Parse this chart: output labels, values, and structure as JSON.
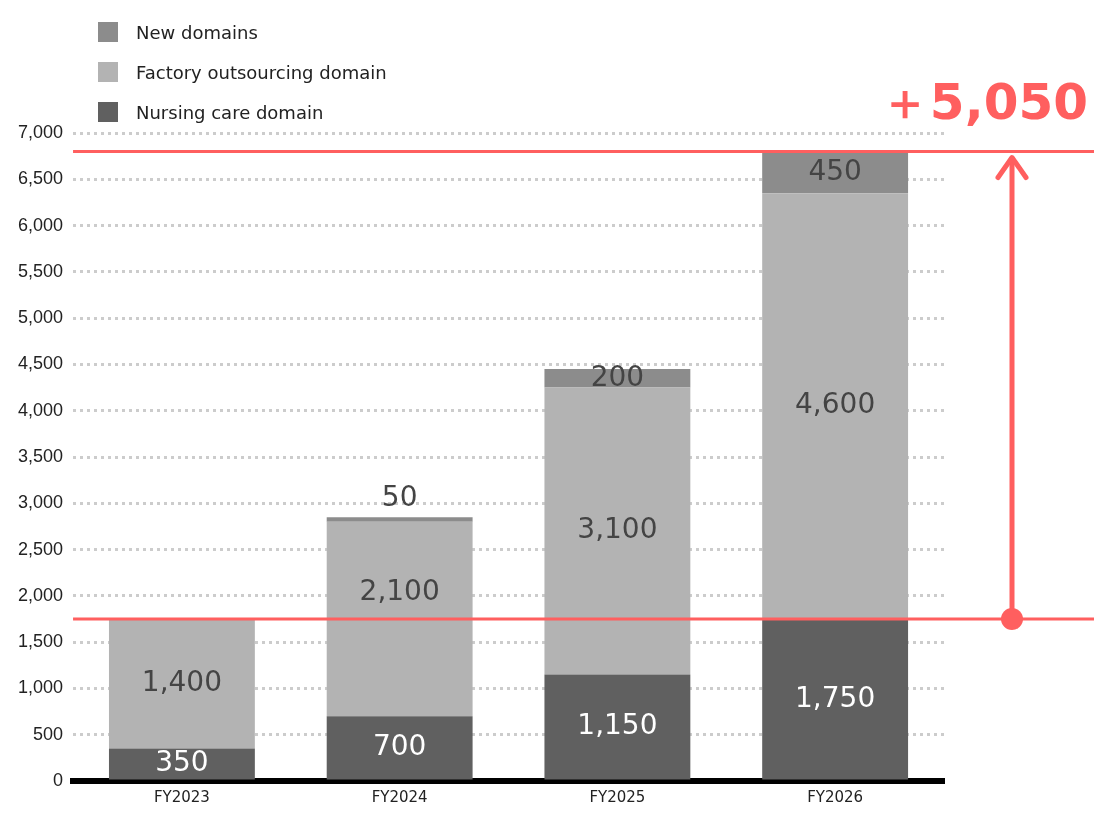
{
  "chart_data": {
    "type": "bar",
    "stacked": true,
    "categories": [
      "FY2023",
      "FY2024",
      "FY2025",
      "FY2026"
    ],
    "series": [
      {
        "name": "Nursing care domain",
        "color": "#606060",
        "values": [
          350,
          700,
          1150,
          1750
        ],
        "value_labels": [
          "350",
          "700",
          "1,150",
          "1,750"
        ]
      },
      {
        "name": "Factory outsourcing domain",
        "color": "#b3b3b3",
        "values": [
          1400,
          2100,
          3100,
          4600
        ],
        "value_labels": [
          "1,400",
          "2,100",
          "3,100",
          "4,600"
        ]
      },
      {
        "name": "New domains",
        "color": "#8c8c8c",
        "values": [
          null,
          50,
          200,
          450
        ],
        "value_labels": [
          null,
          "50",
          "200",
          "450"
        ]
      }
    ],
    "ylim": [
      0,
      7000
    ],
    "yticks": [
      {
        "value": 0,
        "label": "0"
      },
      {
        "value": 500,
        "label": "500"
      },
      {
        "value": 1000,
        "label": "1,000"
      },
      {
        "value": 1500,
        "label": "1,500"
      },
      {
        "value": 2000,
        "label": "2,000"
      },
      {
        "value": 2500,
        "label": "2,500"
      },
      {
        "value": 3000,
        "label": "3,000"
      },
      {
        "value": 3500,
        "label": "3,500"
      },
      {
        "value": 4000,
        "label": "4,000"
      },
      {
        "value": 4500,
        "label": "4,500"
      },
      {
        "value": 5000,
        "label": "5,000"
      },
      {
        "value": 5500,
        "label": "5,500"
      },
      {
        "value": 6000,
        "label": "6,000"
      },
      {
        "value": 6500,
        "label": "6,500"
      },
      {
        "value": 7000,
        "label": "7,000"
      }
    ],
    "grid": "y",
    "legend": "top left",
    "ref_lines": [
      {
        "axis": "y",
        "value": 1750,
        "color": "#ff5f5f"
      },
      {
        "axis": "y",
        "value": 6800,
        "color": "#ff5f5f"
      }
    ],
    "annotations": [
      "＋5,050"
    ]
  }
}
